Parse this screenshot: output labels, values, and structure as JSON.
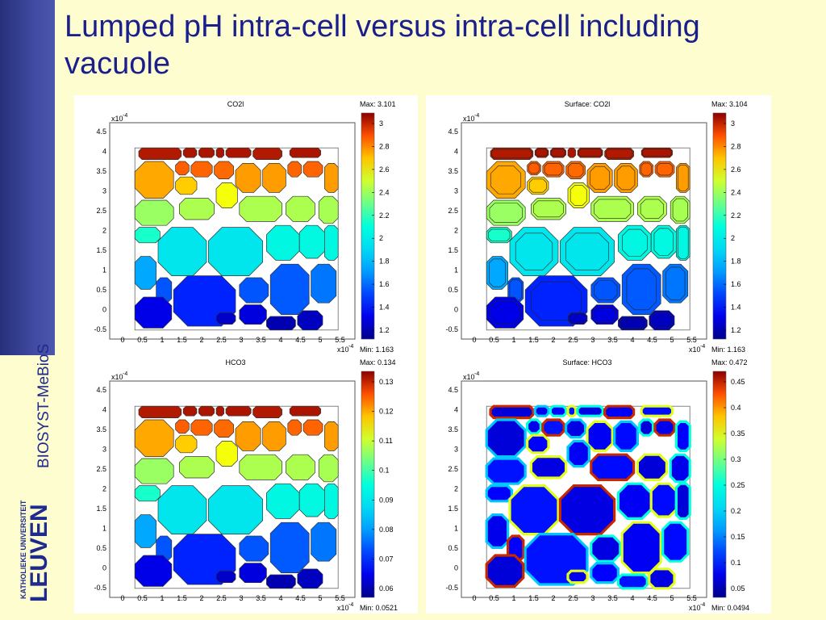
{
  "slide": {
    "title": "Lumped pH intra-cell versus intra-cell including vacuole",
    "sidebar_text": "BIOSYST-MeBioS",
    "logo_small": "KATHOLIEKE UNIVERSITEIT",
    "logo_big": "LEUVEN"
  },
  "colors": {
    "title": "#1a1f8c",
    "background": "#fdfdd0",
    "sidebar": "#3f4aa0"
  },
  "axes": {
    "x_ticks": [
      "0",
      "0.5",
      "1",
      "1.5",
      "2",
      "2.5",
      "3",
      "3.5",
      "4",
      "4.5",
      "5",
      "5.5"
    ],
    "y_ticks": [
      "4.5",
      "4",
      "3.5",
      "3",
      "2.5",
      "2",
      "1.5",
      "1",
      "0.5",
      "0",
      "-0.5"
    ],
    "x_exponent": "x10",
    "y_exponent": "x10",
    "exponent_power": "-4"
  },
  "panels": [
    {
      "title": "CO2l",
      "max": "Max: 3.101",
      "min": "Min: 1.163",
      "colorbar_ticks": [
        "3",
        "2.8",
        "2.6",
        "2.4",
        "2.2",
        "2",
        "1.8",
        "1.6",
        "1.4",
        "1.2"
      ],
      "style": "gradient"
    },
    {
      "title": "Surface: CO2l",
      "max": "Max: 3.104",
      "min": "Min: 1.163",
      "colorbar_ticks": [
        "3",
        "2.8",
        "2.6",
        "2.4",
        "2.2",
        "2",
        "1.8",
        "1.6",
        "1.4",
        "1.2"
      ],
      "style": "vacuole"
    },
    {
      "title": "HCO3",
      "max": "Max: 0.134",
      "min": "Min: 0.0521",
      "colorbar_ticks": [
        "0.13",
        "0.12",
        "0.11",
        "0.1",
        "0.09",
        "0.08",
        "0.07",
        "0.06"
      ],
      "style": "gradient"
    },
    {
      "title": "Surface: HCO3",
      "max": "Max: 0.472",
      "min": "Min: 0.0494",
      "colorbar_ticks": [
        "0.45",
        "0.4",
        "0.35",
        "0.3",
        "0.25",
        "0.2",
        "0.15",
        "0.1",
        "0.05"
      ],
      "style": "rings"
    }
  ]
}
